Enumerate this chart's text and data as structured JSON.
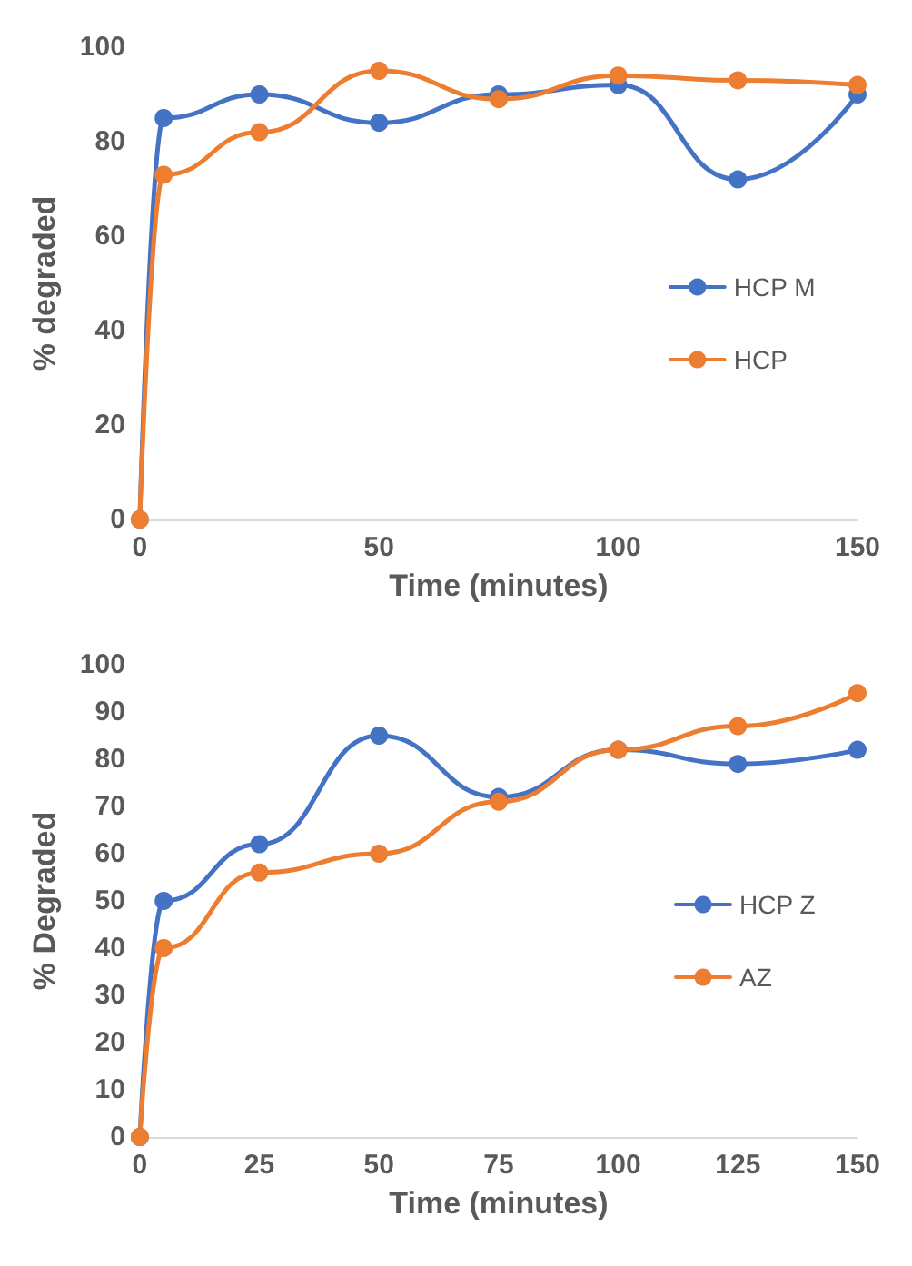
{
  "chart_data": [
    {
      "type": "line",
      "xlabel": "Time (minutes)",
      "ylabel": "% degraded",
      "x": [
        0,
        5,
        25,
        50,
        75,
        100,
        125,
        150
      ],
      "xlim": [
        0,
        150
      ],
      "xticks": [
        0,
        50,
        100,
        150
      ],
      "ylim": [
        0,
        100
      ],
      "yticks": [
        0,
        20,
        40,
        60,
        80,
        100
      ],
      "grid": false,
      "legend": "right",
      "marker": "circle",
      "line_style": "solid",
      "series": [
        {
          "name": "HCP M",
          "color": "#4472c4",
          "values": [
            0,
            85,
            90,
            84,
            90,
            92,
            72,
            90
          ]
        },
        {
          "name": "HCP",
          "color": "#ed7d31",
          "values": [
            0,
            73,
            82,
            95,
            89,
            94,
            93,
            92
          ]
        }
      ]
    },
    {
      "type": "line",
      "xlabel": "Time (minutes)",
      "ylabel": "% Degraded",
      "x": [
        0,
        5,
        25,
        50,
        75,
        100,
        125,
        150
      ],
      "xlim": [
        0,
        150
      ],
      "xticks": [
        0,
        25,
        50,
        75,
        100,
        125,
        150
      ],
      "ylim": [
        0,
        100
      ],
      "yticks": [
        0,
        10,
        20,
        30,
        40,
        50,
        60,
        70,
        80,
        90,
        100
      ],
      "grid": false,
      "legend": "right",
      "marker": "circle",
      "line_style": "solid",
      "series": [
        {
          "name": "HCP Z",
          "color": "#4472c4",
          "values": [
            0,
            50,
            62,
            85,
            72,
            82,
            79,
            82
          ]
        },
        {
          "name": "AZ",
          "color": "#ed7d31",
          "values": [
            0,
            40,
            56,
            60,
            71,
            82,
            87,
            94
          ]
        }
      ]
    }
  ]
}
